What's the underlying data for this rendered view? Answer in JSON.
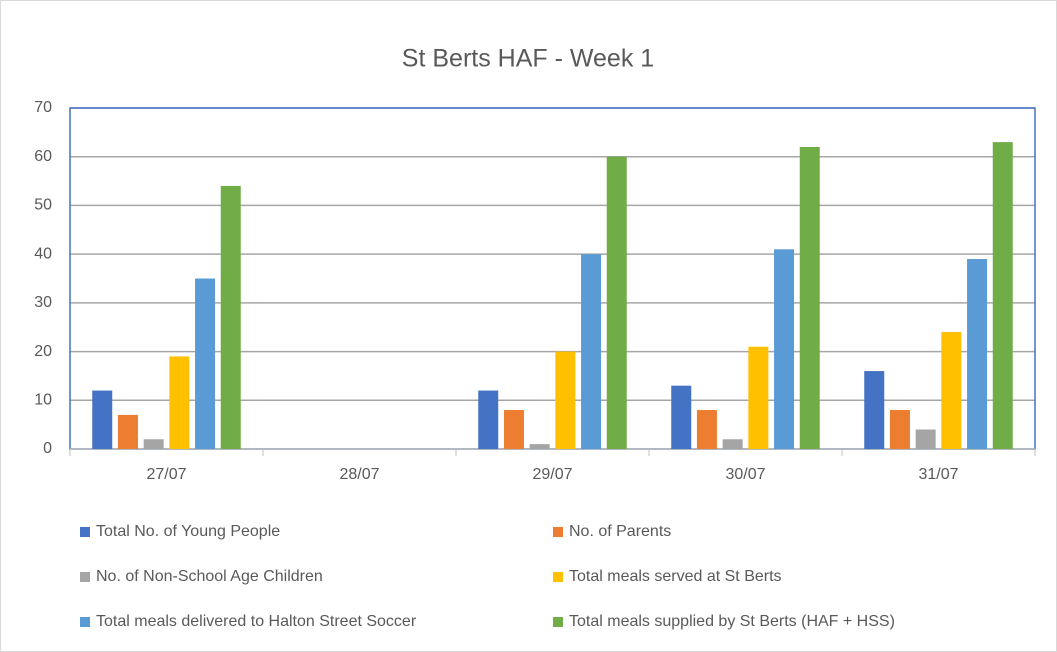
{
  "chart_data": {
    "type": "bar",
    "title": "St Berts HAF - Week 1",
    "categories": [
      "27/07",
      "28/07",
      "29/07",
      "30/07",
      "31/07"
    ],
    "series": [
      {
        "name": "Total No. of Young People",
        "color": "#4472c4",
        "values": [
          12,
          null,
          12,
          13,
          16
        ]
      },
      {
        "name": "No. of Parents",
        "color": "#ed7d31",
        "values": [
          7,
          null,
          8,
          8,
          8
        ]
      },
      {
        "name": "No. of Non-School Age Children",
        "color": "#a5a5a5",
        "values": [
          2,
          null,
          1,
          2,
          4
        ]
      },
      {
        "name": "Total meals served at St Berts",
        "color": "#ffc000",
        "values": [
          19,
          null,
          20,
          21,
          24
        ]
      },
      {
        "name": "Total meals delivered to Halton Street Soccer",
        "color": "#5b9bd5",
        "values": [
          35,
          null,
          40,
          41,
          39
        ]
      },
      {
        "name": "Total meals supplied by St Berts (HAF + HSS)",
        "color": "#70ad47",
        "values": [
          54,
          null,
          60,
          62,
          63
        ]
      }
    ],
    "ylim": [
      0,
      70
    ],
    "yticks": [
      0,
      10,
      20,
      30,
      40,
      50,
      60,
      70
    ],
    "grid": true,
    "legend": "bottom"
  }
}
